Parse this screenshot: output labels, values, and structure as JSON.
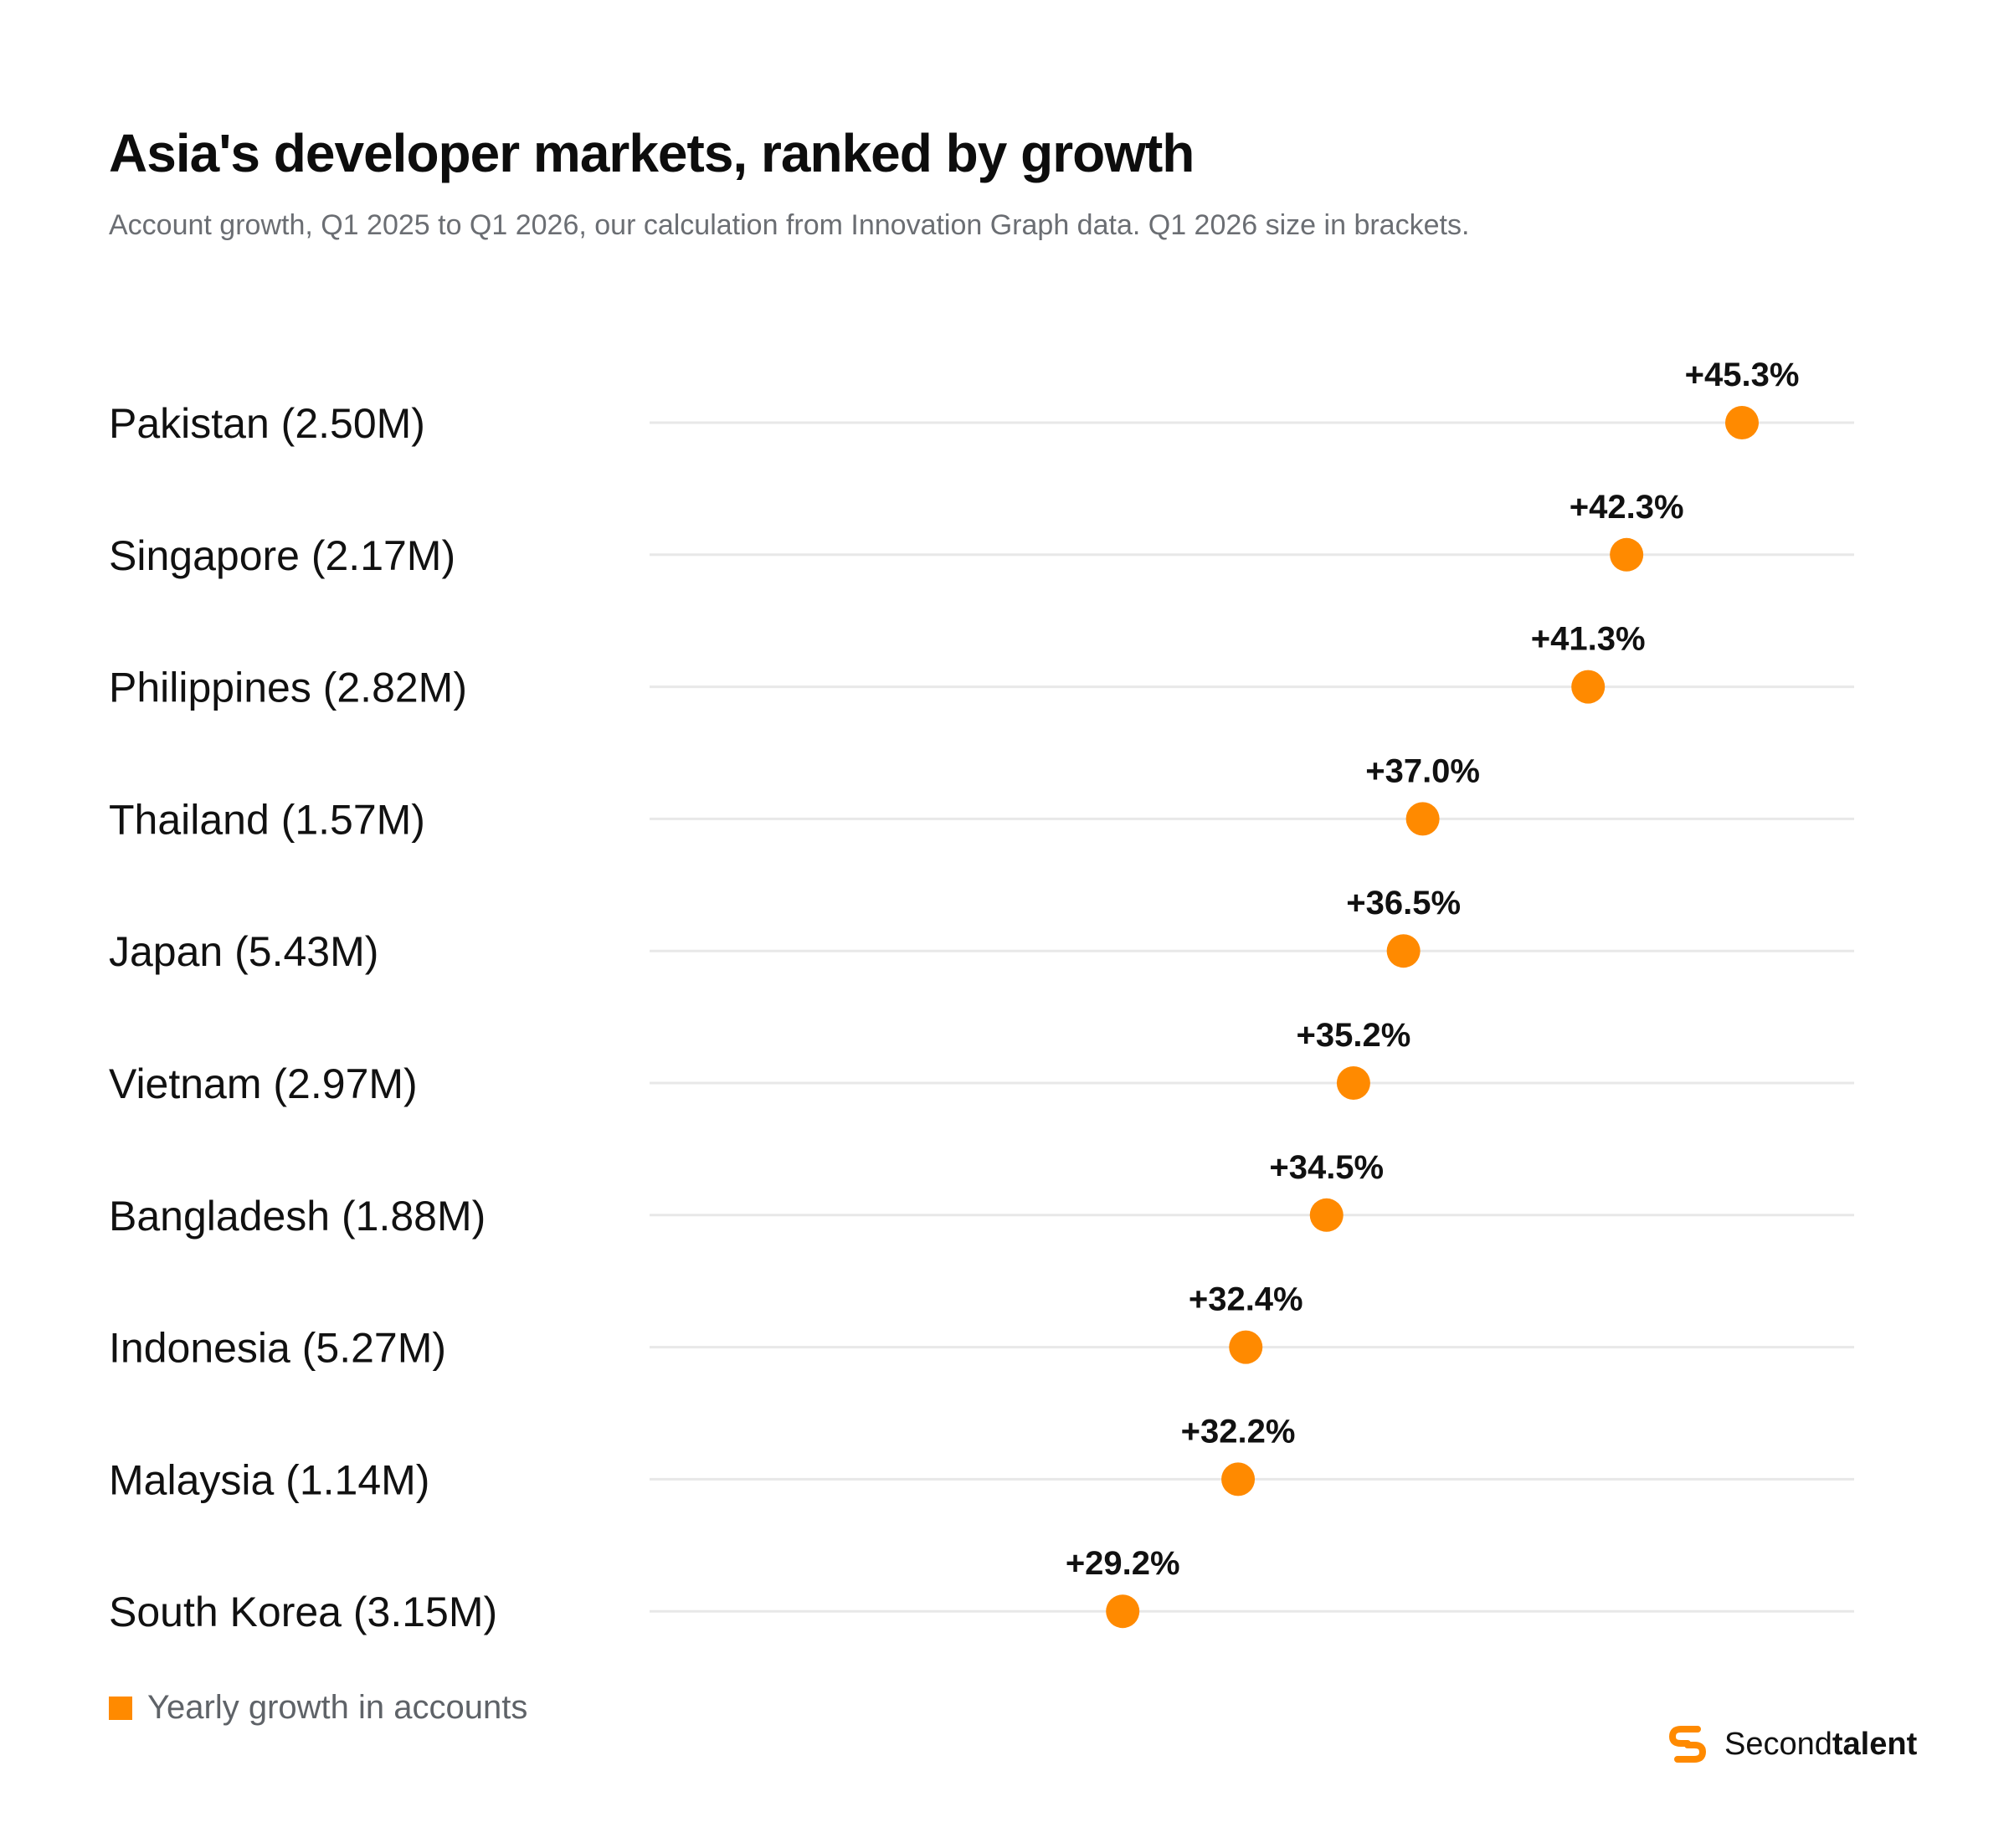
{
  "header": {
    "title": "Asia's developer markets, ranked by growth",
    "subtitle": "Account growth, Q1 2025 to Q1 2026, our calculation from Innovation Graph data. Q1 2026 size in brackets."
  },
  "legend": {
    "label": "Yearly growth in accounts",
    "color": "#FF8A00"
  },
  "brand": {
    "name_light": "Second",
    "name_bold": "talent",
    "color": "#FF8A00",
    "icon": "secondtalent-logo-icon"
  },
  "colors": {
    "dot": "#FF8A00",
    "gridline": "#E8E8E8"
  },
  "chart_data": {
    "type": "scatter",
    "categories": [
      "Pakistan (2.50M)",
      "Singapore (2.17M)",
      "Philippines (2.82M)",
      "Thailand (1.57M)",
      "Japan (5.43M)",
      "Vietnam (2.97M)",
      "Bangladesh (1.88M)",
      "Indonesia (5.27M)",
      "Malaysia (1.14M)",
      "South Korea (3.15M)"
    ],
    "values": [
      45.3,
      42.3,
      41.3,
      37.0,
      36.5,
      35.2,
      34.5,
      32.4,
      32.2,
      29.2
    ],
    "value_labels": [
      "+45.3%",
      "+42.3%",
      "+41.3%",
      "+37.0%",
      "+36.5%",
      "+35.2%",
      "+34.5%",
      "+32.4%",
      "+32.2%",
      "+29.2%"
    ],
    "series": [
      {
        "name": "Yearly growth in accounts",
        "values": [
          45.3,
          42.3,
          41.3,
          37.0,
          36.5,
          35.2,
          34.5,
          32.4,
          32.2,
          29.2
        ]
      }
    ],
    "xlim": [
      0,
      50
    ],
    "grid": true,
    "legend_position": "bottom-left",
    "title": "Asia's developer markets, ranked by growth",
    "xlabel": "",
    "ylabel": ""
  }
}
